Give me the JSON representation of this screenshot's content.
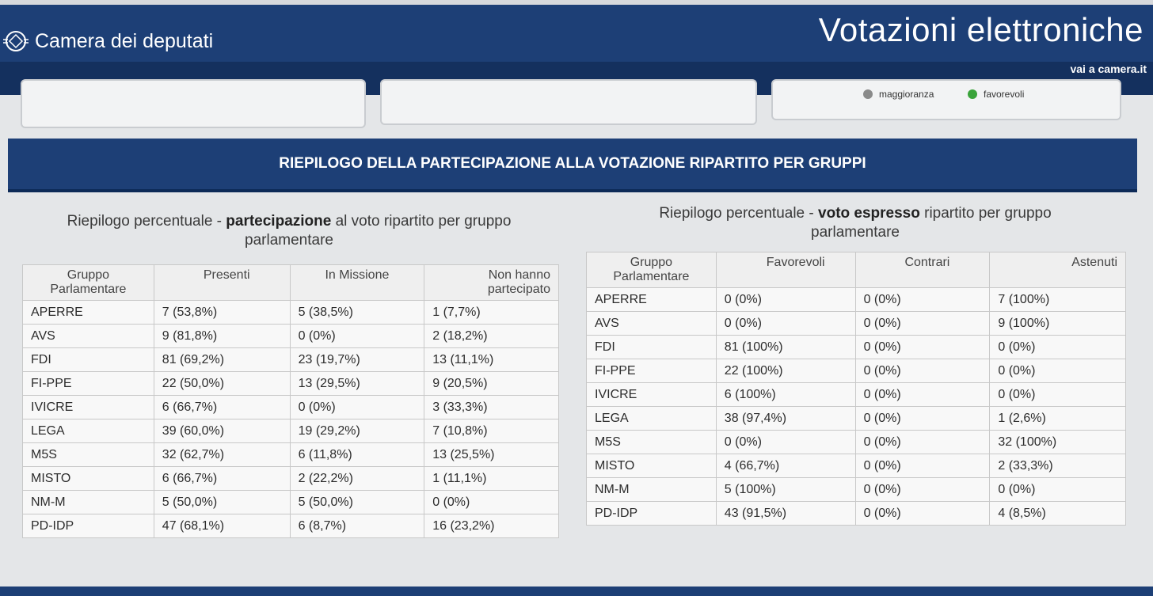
{
  "header": {
    "site_name": "Camera dei deputati",
    "title": "Votazioni elettroniche",
    "home_link": "vai a camera.it",
    "logo_icon": "parliament-logo-icon"
  },
  "legend": [
    {
      "label": "maggioranza",
      "color": "#8a8a8a"
    },
    {
      "label": "favorevoli",
      "color": "#3aa33a"
    }
  ],
  "section_title": "RIEPILOGO DELLA PARTECIPAZIONE ALLA VOTAZIONE RIPARTITO PER GRUPPI",
  "participation": {
    "caption_before": "Riepilogo percentuale - ",
    "caption_bold": "partecipazione",
    "caption_after": " al voto ripartito per gruppo parlamentare",
    "headers": [
      "Gruppo Parlamentare",
      "Presenti",
      "In Missione",
      "Non hanno partecipato"
    ],
    "rows": [
      [
        "APERRE",
        "7 (53,8%)",
        "5 (38,5%)",
        "1 (7,7%)"
      ],
      [
        "AVS",
        "9 (81,8%)",
        "0 (0%)",
        "2 (18,2%)"
      ],
      [
        "FDI",
        "81 (69,2%)",
        "23 (19,7%)",
        "13 (11,1%)"
      ],
      [
        "FI-PPE",
        "22 (50,0%)",
        "13 (29,5%)",
        "9 (20,5%)"
      ],
      [
        "IVICRE",
        "6 (66,7%)",
        "0 (0%)",
        "3 (33,3%)"
      ],
      [
        "LEGA",
        "39 (60,0%)",
        "19 (29,2%)",
        "7 (10,8%)"
      ],
      [
        "M5S",
        "32 (62,7%)",
        "6 (11,8%)",
        "13 (25,5%)"
      ],
      [
        "MISTO",
        "6 (66,7%)",
        "2 (22,2%)",
        "1 (11,1%)"
      ],
      [
        "NM-M",
        "5 (50,0%)",
        "5 (50,0%)",
        "0 (0%)"
      ],
      [
        "PD-IDP",
        "47 (68,1%)",
        "6 (8,7%)",
        "16 (23,2%)"
      ]
    ]
  },
  "vote": {
    "caption_before": "Riepilogo percentuale - ",
    "caption_bold": "voto espresso",
    "caption_after": " ripartito per gruppo parlamentare",
    "headers": [
      "Gruppo Parlamentare",
      "Favorevoli",
      "Contrari",
      "Astenuti"
    ],
    "rows": [
      [
        "APERRE",
        "0 (0%)",
        "0 (0%)",
        "7 (100%)"
      ],
      [
        "AVS",
        "0 (0%)",
        "0 (0%)",
        "9 (100%)"
      ],
      [
        "FDI",
        "81 (100%)",
        "0 (0%)",
        "0 (0%)"
      ],
      [
        "FI-PPE",
        "22 (100%)",
        "0 (0%)",
        "0 (0%)"
      ],
      [
        "IVICRE",
        "6 (100%)",
        "0 (0%)",
        "0 (0%)"
      ],
      [
        "LEGA",
        "38 (97,4%)",
        "0 (0%)",
        "1 (2,6%)"
      ],
      [
        "M5S",
        "0 (0%)",
        "0 (0%)",
        "32 (100%)"
      ],
      [
        "MISTO",
        "4 (66,7%)",
        "0 (0%)",
        "2 (33,3%)"
      ],
      [
        "NM-M",
        "5 (100%)",
        "0 (0%)",
        "0 (0%)"
      ],
      [
        "PD-IDP",
        "43 (91,5%)",
        "0 (0%)",
        "4 (8,5%)"
      ]
    ]
  },
  "colors": {
    "brand_blue": "#1d3f76",
    "dark_blue": "#14305e",
    "flag_green": "#2e9b4a",
    "flag_white": "#ffffff",
    "flag_red": "#d6462f"
  }
}
